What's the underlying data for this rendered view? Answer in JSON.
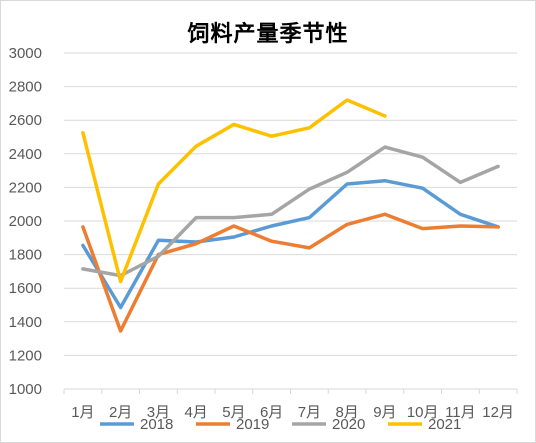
{
  "chart_data": {
    "type": "line",
    "title": "饲料产量季节性",
    "xlabel": "",
    "ylabel": "",
    "categories": [
      "1月",
      "2月",
      "3月",
      "4月",
      "5月",
      "6月",
      "7月",
      "8月",
      "9月",
      "10月",
      "11月",
      "12月"
    ],
    "ylim": [
      1000,
      3000
    ],
    "yticks": [
      1000,
      1200,
      1400,
      1600,
      1800,
      2000,
      2200,
      2400,
      2600,
      2800,
      3000
    ],
    "grid": true,
    "legend_position": "bottom",
    "series": [
      {
        "name": "2018",
        "color": "#5b9bd5",
        "values": [
          1855,
          1485,
          1885,
          1875,
          1905,
          1970,
          2020,
          2220,
          2240,
          2195,
          2040,
          1965
        ]
      },
      {
        "name": "2019",
        "color": "#ed7d31",
        "values": [
          1965,
          1345,
          1800,
          1865,
          1970,
          1880,
          1840,
          1980,
          2040,
          1955,
          1970,
          1965
        ]
      },
      {
        "name": "2020",
        "color": "#a5a5a5",
        "values": [
          1715,
          1675,
          1790,
          2020,
          2020,
          2040,
          2190,
          2290,
          2440,
          2380,
          2230,
          2325
        ]
      },
      {
        "name": "2021",
        "color": "#ffc000",
        "values": [
          2525,
          1640,
          2220,
          2445,
          2575,
          2505,
          2555,
          2720,
          2625,
          null,
          null,
          null
        ]
      }
    ]
  }
}
